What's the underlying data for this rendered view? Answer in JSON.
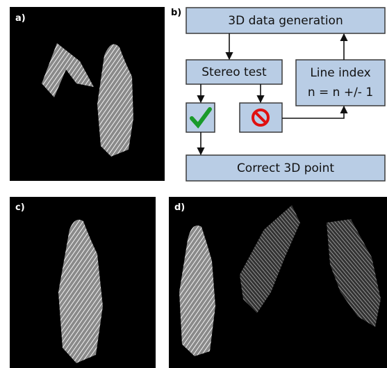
{
  "panels": {
    "a": "a)",
    "b": "b)",
    "c": "c)",
    "d": "d)"
  },
  "flowchart": {
    "generation": "3D data generation",
    "stereo_test": "Stereo test",
    "line_index": [
      "Line index",
      "n = n +/- 1"
    ],
    "correct_point": "Correct 3D point"
  }
}
